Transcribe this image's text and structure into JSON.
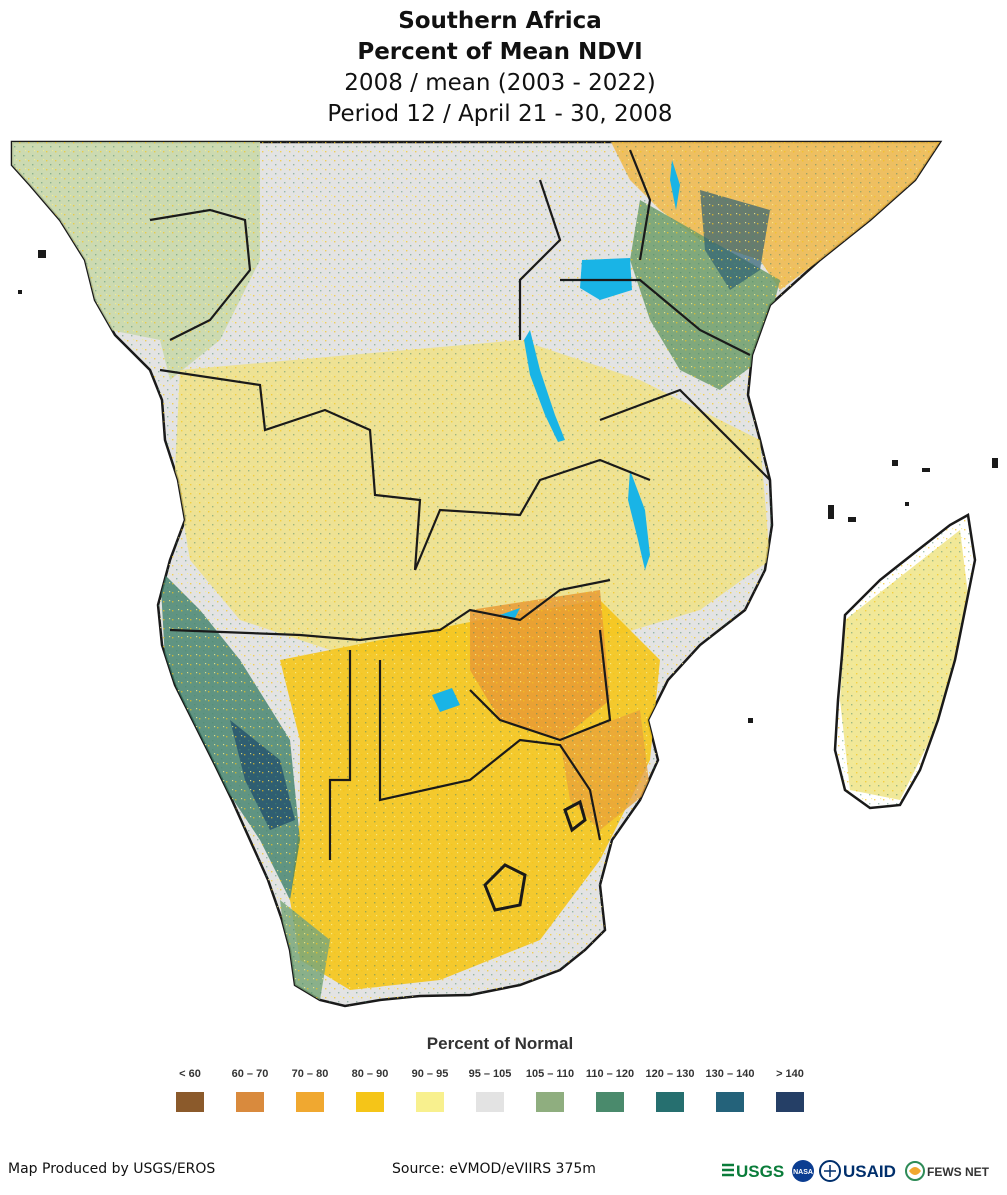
{
  "title": {
    "line1": "Southern Africa",
    "line2": "Percent of Mean NDVI",
    "line3": "2008 / mean (2003 - 2022)",
    "line4": "Period 12 / April 21 - 30, 2008"
  },
  "legend": {
    "title": "Percent of Normal",
    "items": [
      {
        "label": "< 60",
        "color": "#8b5a2b"
      },
      {
        "label": "60 – 70",
        "color": "#d98a3d"
      },
      {
        "label": "70 – 80",
        "color": "#f0a830"
      },
      {
        "label": "80 – 90",
        "color": "#f5c518"
      },
      {
        "label": "90 – 95",
        "color": "#f8f08e"
      },
      {
        "label": "95 – 105",
        "color": "#e3e3e3"
      },
      {
        "label": "105 – 110",
        "color": "#8fae7f"
      },
      {
        "label": "110 – 120",
        "color": "#4a8a6c"
      },
      {
        "label": "120 – 130",
        "color": "#266f6f"
      },
      {
        "label": "130 – 140",
        "color": "#24627a"
      },
      {
        "label": "> 140",
        "color": "#253f66"
      }
    ]
  },
  "footer": {
    "produced_by": "Map Produced by USGS/EROS",
    "source": "Source: eVMOD/eVIIRS 375m"
  },
  "logos": {
    "usgs": "USGS",
    "nasa": "NASA",
    "usaid": "USAID",
    "fews": "FEWS NET"
  },
  "colors": {
    "water": "#19b4e6",
    "border": "#1a1a1a",
    "admin": "#555555",
    "ocean": "#ffffff"
  }
}
